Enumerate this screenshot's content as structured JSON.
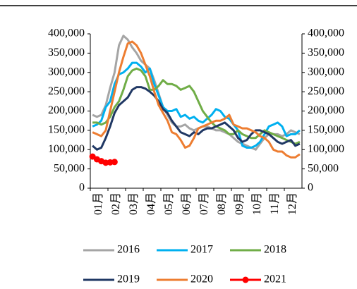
{
  "chart_data": {
    "type": "line",
    "categories": [
      "01月",
      null,
      null,
      null,
      "02月",
      null,
      null,
      null,
      "03月",
      null,
      null,
      null,
      "04月",
      null,
      null,
      null,
      "05月",
      null,
      null,
      null,
      "06月",
      null,
      null,
      null,
      "07月",
      null,
      null,
      null,
      "08月",
      null,
      null,
      null,
      "09月",
      null,
      null,
      null,
      "10月",
      null,
      null,
      null,
      "11月",
      null,
      null,
      null,
      "12月",
      null,
      null,
      null
    ],
    "ylim": [
      0,
      400000
    ],
    "yticks": [
      0,
      {
        "value": 50000,
        "label": "50,000"
      },
      {
        "value": 100000,
        "label": "100,000"
      },
      {
        "value": 150000,
        "label": "150,000"
      },
      {
        "value": 200000,
        "label": "200,000"
      },
      {
        "value": 250000,
        "label": "250,000"
      },
      {
        "value": 300000,
        "label": "300,000"
      },
      {
        "value": 350000,
        "label": "350,000"
      },
      {
        "value": 400000,
        "label": "400,000"
      }
    ],
    "y2lim": [
      0,
      400000
    ],
    "y2ticks": [
      0,
      {
        "value": 50000,
        "label": "50,000"
      },
      {
        "value": 100000,
        "label": "100,000"
      },
      {
        "value": 150000,
        "label": "150,000"
      },
      {
        "value": 200000,
        "label": "200,000"
      },
      {
        "value": 250000,
        "label": "250,000"
      },
      {
        "value": 300000,
        "label": "300,000"
      },
      {
        "value": 350000,
        "label": "350,000"
      },
      {
        "value": 400000,
        "label": "400,000"
      }
    ],
    "series": [
      {
        "name": "2016",
        "color": "#a5a5a5",
        "values": [
          190000,
          185000,
          190000,
          215000,
          260000,
          300000,
          370000,
          395000,
          385000,
          365000,
          350000,
          330000,
          320000,
          310000,
          280000,
          245000,
          210000,
          190000,
          170000,
          160000,
          160000,
          165000,
          155000,
          150000,
          155000,
          160000,
          160000,
          155000,
          150000,
          150000,
          145000,
          140000,
          130000,
          120000,
          115000,
          110000,
          105000,
          100000,
          115000,
          130000,
          140000,
          140000,
          140000,
          135000,
          140000,
          150000,
          145000,
          140000
        ]
      },
      {
        "name": "2017",
        "color": "#00b0f0",
        "values": [
          160000,
          165000,
          175000,
          210000,
          225000,
          270000,
          295000,
          300000,
          310000,
          325000,
          325000,
          315000,
          300000,
          310000,
          270000,
          240000,
          210000,
          200000,
          200000,
          205000,
          185000,
          190000,
          180000,
          185000,
          175000,
          170000,
          180000,
          190000,
          205000,
          200000,
          185000,
          180000,
          165000,
          150000,
          110000,
          105000,
          105000,
          110000,
          120000,
          140000,
          160000,
          165000,
          170000,
          160000,
          135000,
          140000,
          140000,
          150000
        ]
      },
      {
        "name": "2018",
        "color": "#70ad47",
        "values": [
          170000,
          170000,
          165000,
          170000,
          185000,
          210000,
          225000,
          255000,
          290000,
          305000,
          310000,
          305000,
          290000,
          255000,
          255000,
          265000,
          280000,
          270000,
          270000,
          265000,
          255000,
          260000,
          265000,
          250000,
          225000,
          200000,
          185000,
          170000,
          160000,
          155000,
          150000,
          140000,
          140000,
          150000,
          140000,
          135000,
          130000,
          130000,
          140000,
          150000,
          145000,
          140000,
          135000,
          130000,
          125000,
          120000,
          115000,
          120000
        ]
      },
      {
        "name": "2019",
        "color": "#203864",
        "values": [
          110000,
          100000,
          105000,
          130000,
          160000,
          195000,
          215000,
          225000,
          235000,
          255000,
          262000,
          262000,
          258000,
          250000,
          240000,
          225000,
          205000,
          195000,
          175000,
          160000,
          145000,
          140000,
          135000,
          145000,
          140000,
          150000,
          155000,
          155000,
          160000,
          165000,
          170000,
          160000,
          150000,
          130000,
          120000,
          125000,
          140000,
          150000,
          150000,
          145000,
          140000,
          130000,
          120000,
          115000,
          120000,
          125000,
          110000,
          115000
        ]
      },
      {
        "name": "2020",
        "color": "#ed7d31",
        "values": [
          145000,
          140000,
          135000,
          150000,
          200000,
          250000,
          300000,
          340000,
          375000,
          380000,
          370000,
          350000,
          320000,
          290000,
          250000,
          215000,
          195000,
          175000,
          145000,
          140000,
          125000,
          105000,
          110000,
          130000,
          155000,
          160000,
          165000,
          170000,
          175000,
          175000,
          180000,
          190000,
          165000,
          160000,
          155000,
          155000,
          150000,
          145000,
          135000,
          130000,
          120000,
          100000,
          95000,
          95000,
          85000,
          80000,
          80000,
          88000
        ]
      },
      {
        "name": "2021",
        "color": "#ff0000",
        "markers": true,
        "values": [
          82000,
          75000,
          70000,
          66000,
          67000,
          68000,
          null,
          null,
          null,
          null,
          null,
          null,
          null,
          null,
          null,
          null,
          null,
          null,
          null,
          null,
          null,
          null,
          null,
          null,
          null,
          null,
          null,
          null,
          null,
          null,
          null,
          null,
          null,
          null,
          null,
          null,
          null,
          null,
          null,
          null,
          null,
          null,
          null,
          null,
          null,
          null,
          null,
          null
        ]
      }
    ]
  }
}
